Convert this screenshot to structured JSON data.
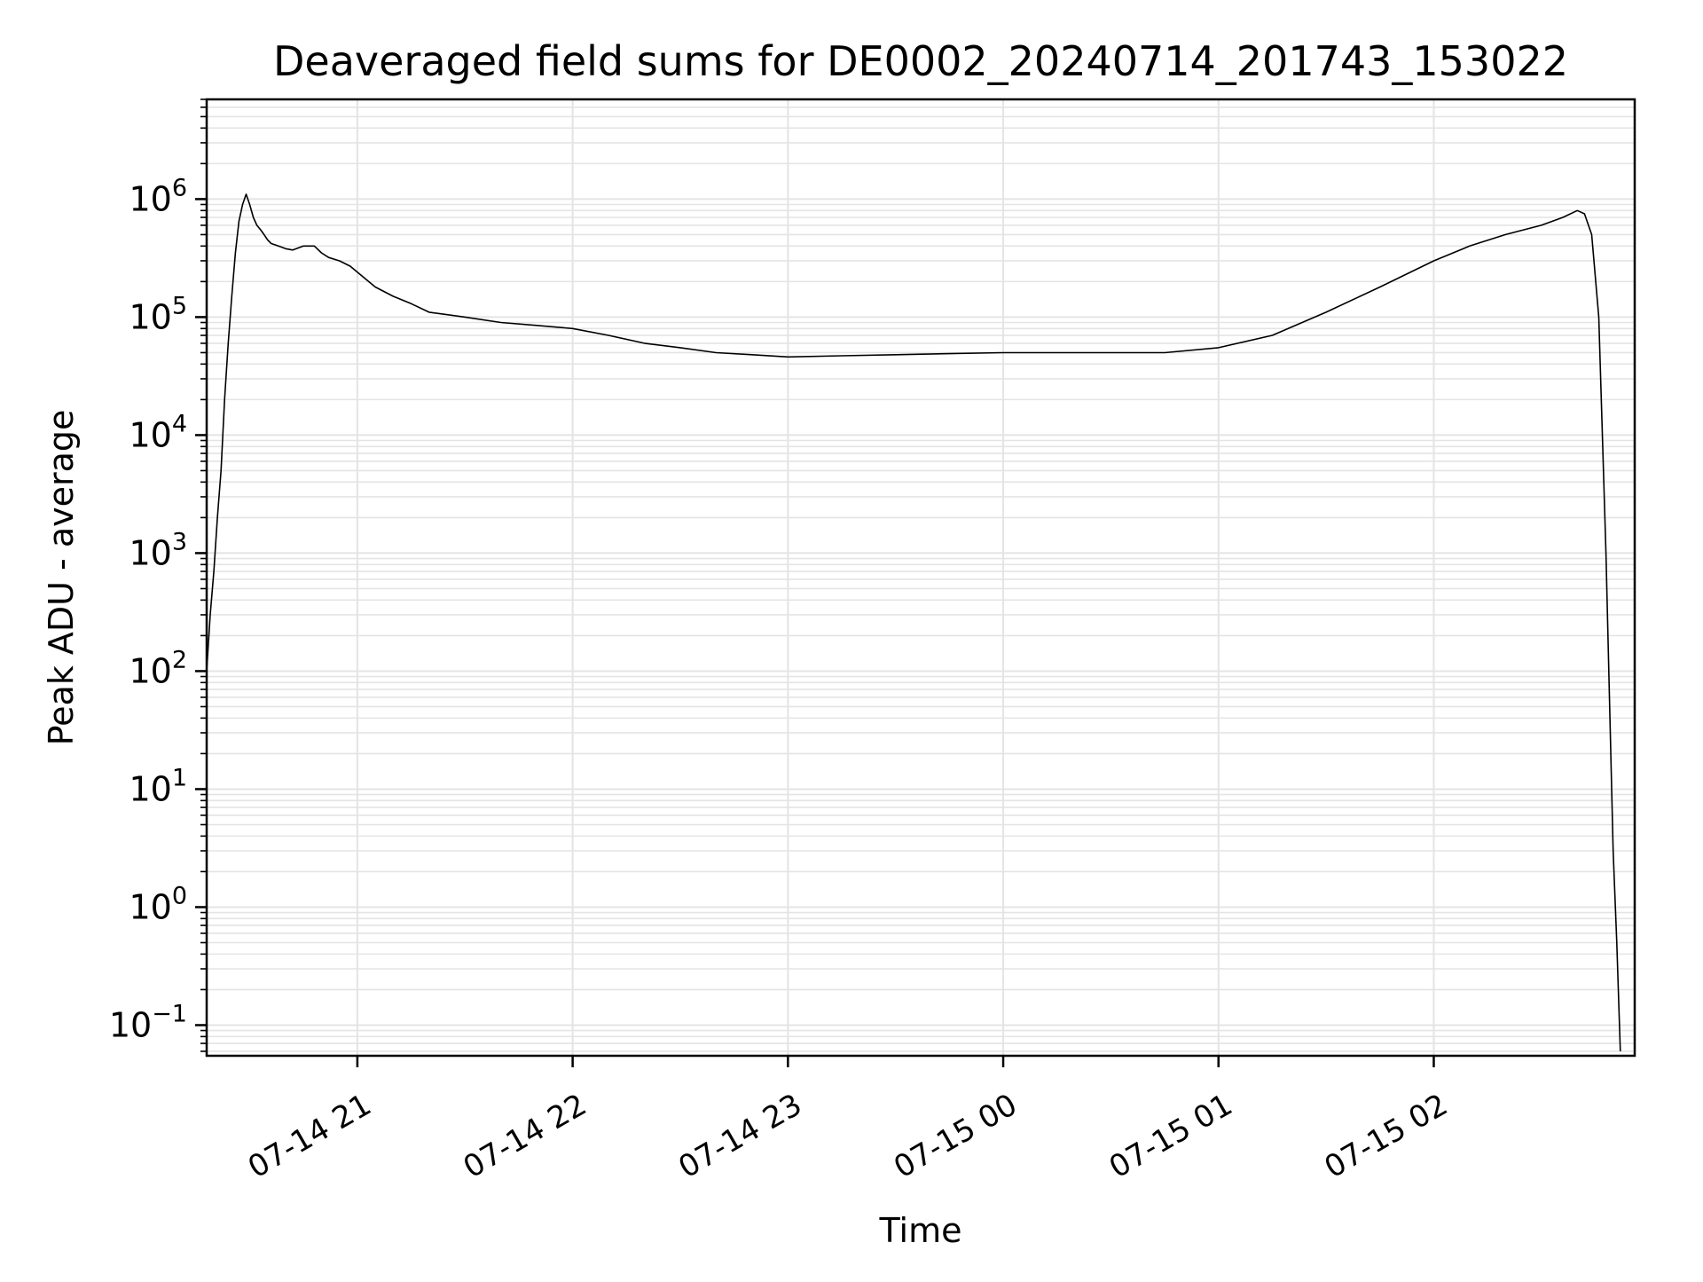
{
  "chart_data": {
    "type": "line",
    "title": "Deaveraged field sums for DE0002_20240714_201743_153022",
    "xlabel": "Time",
    "ylabel": "Peak ADU - average",
    "yscale": "log",
    "xlim": [
      "2024-07-14 20:18",
      "2024-07-15 02:56"
    ],
    "ylim": [
      0.055,
      7000000
    ],
    "grid": true,
    "line_color": "#000000",
    "grid_color": "#e4e4e4",
    "x_ticks": [
      {
        "label": "07-14 21",
        "value": "2024-07-14 21:00"
      },
      {
        "label": "07-14 22",
        "value": "2024-07-14 22:00"
      },
      {
        "label": "07-14 23",
        "value": "2024-07-14 23:00"
      },
      {
        "label": "07-15 00",
        "value": "2024-07-15 00:00"
      },
      {
        "label": "07-15 01",
        "value": "2024-07-15 01:00"
      },
      {
        "label": "07-15 02",
        "value": "2024-07-15 02:00"
      }
    ],
    "y_ticks": [
      {
        "base": "10",
        "exp": "−1",
        "value": 0.1
      },
      {
        "base": "10",
        "exp": "0",
        "value": 1
      },
      {
        "base": "10",
        "exp": "1",
        "value": 10
      },
      {
        "base": "10",
        "exp": "2",
        "value": 100
      },
      {
        "base": "10",
        "exp": "3",
        "value": 1000
      },
      {
        "base": "10",
        "exp": "4",
        "value": 10000
      },
      {
        "base": "10",
        "exp": "5",
        "value": 100000
      },
      {
        "base": "10",
        "exp": "6",
        "value": 1000000
      }
    ],
    "series": [
      {
        "x": [
          "2024-07-14 20:18",
          "2024-07-14 20:19",
          "2024-07-14 20:20",
          "2024-07-14 20:21",
          "2024-07-14 20:22",
          "2024-07-14 20:23",
          "2024-07-14 20:24",
          "2024-07-14 20:25",
          "2024-07-14 20:26",
          "2024-07-14 20:27",
          "2024-07-14 20:28",
          "2024-07-14 20:29",
          "2024-07-14 20:30",
          "2024-07-14 20:31",
          "2024-07-14 20:32",
          "2024-07-14 20:33",
          "2024-07-14 20:34",
          "2024-07-14 20:35",
          "2024-07-14 20:36",
          "2024-07-14 20:38",
          "2024-07-14 20:40",
          "2024-07-14 20:42",
          "2024-07-14 20:45",
          "2024-07-14 20:48",
          "2024-07-14 20:50",
          "2024-07-14 20:52",
          "2024-07-14 20:55",
          "2024-07-14 20:58",
          "2024-07-14 21:00",
          "2024-07-14 21:05",
          "2024-07-14 21:10",
          "2024-07-14 21:15",
          "2024-07-14 21:20",
          "2024-07-14 21:30",
          "2024-07-14 21:40",
          "2024-07-14 21:50",
          "2024-07-14 22:00",
          "2024-07-14 22:10",
          "2024-07-14 22:20",
          "2024-07-14 22:30",
          "2024-07-14 22:40",
          "2024-07-14 22:50",
          "2024-07-14 23:00",
          "2024-07-14 23:15",
          "2024-07-14 23:30",
          "2024-07-14 23:45",
          "2024-07-15 00:00",
          "2024-07-15 00:15",
          "2024-07-15 00:30",
          "2024-07-15 00:45",
          "2024-07-15 01:00",
          "2024-07-15 01:15",
          "2024-07-15 01:30",
          "2024-07-15 01:45",
          "2024-07-15 02:00",
          "2024-07-15 02:10",
          "2024-07-15 02:20",
          "2024-07-15 02:30",
          "2024-07-15 02:36",
          "2024-07-15 02:40",
          "2024-07-15 02:42",
          "2024-07-15 02:44",
          "2024-07-15 02:46",
          "2024-07-15 02:48",
          "2024-07-15 02:50",
          "2024-07-15 02:51",
          "2024-07-15 02:52"
        ],
        "y": [
          100,
          300,
          700,
          2000,
          5000,
          20000,
          60000,
          150000,
          350000,
          650000,
          900000,
          1100000,
          900000,
          700000,
          600000,
          550000,
          500000,
          450000,
          420000,
          400000,
          380000,
          370000,
          400000,
          400000,
          350000,
          320000,
          300000,
          270000,
          240000,
          180000,
          150000,
          130000,
          110000,
          100000,
          90000,
          85000,
          80000,
          70000,
          60000,
          55000,
          50000,
          48000,
          46000,
          47000,
          48000,
          49000,
          50000,
          50000,
          50000,
          50000,
          55000,
          70000,
          110000,
          180000,
          300000,
          400000,
          500000,
          600000,
          700000,
          800000,
          750000,
          500000,
          100000,
          1000,
          3,
          0.5,
          0.06
        ]
      }
    ]
  }
}
